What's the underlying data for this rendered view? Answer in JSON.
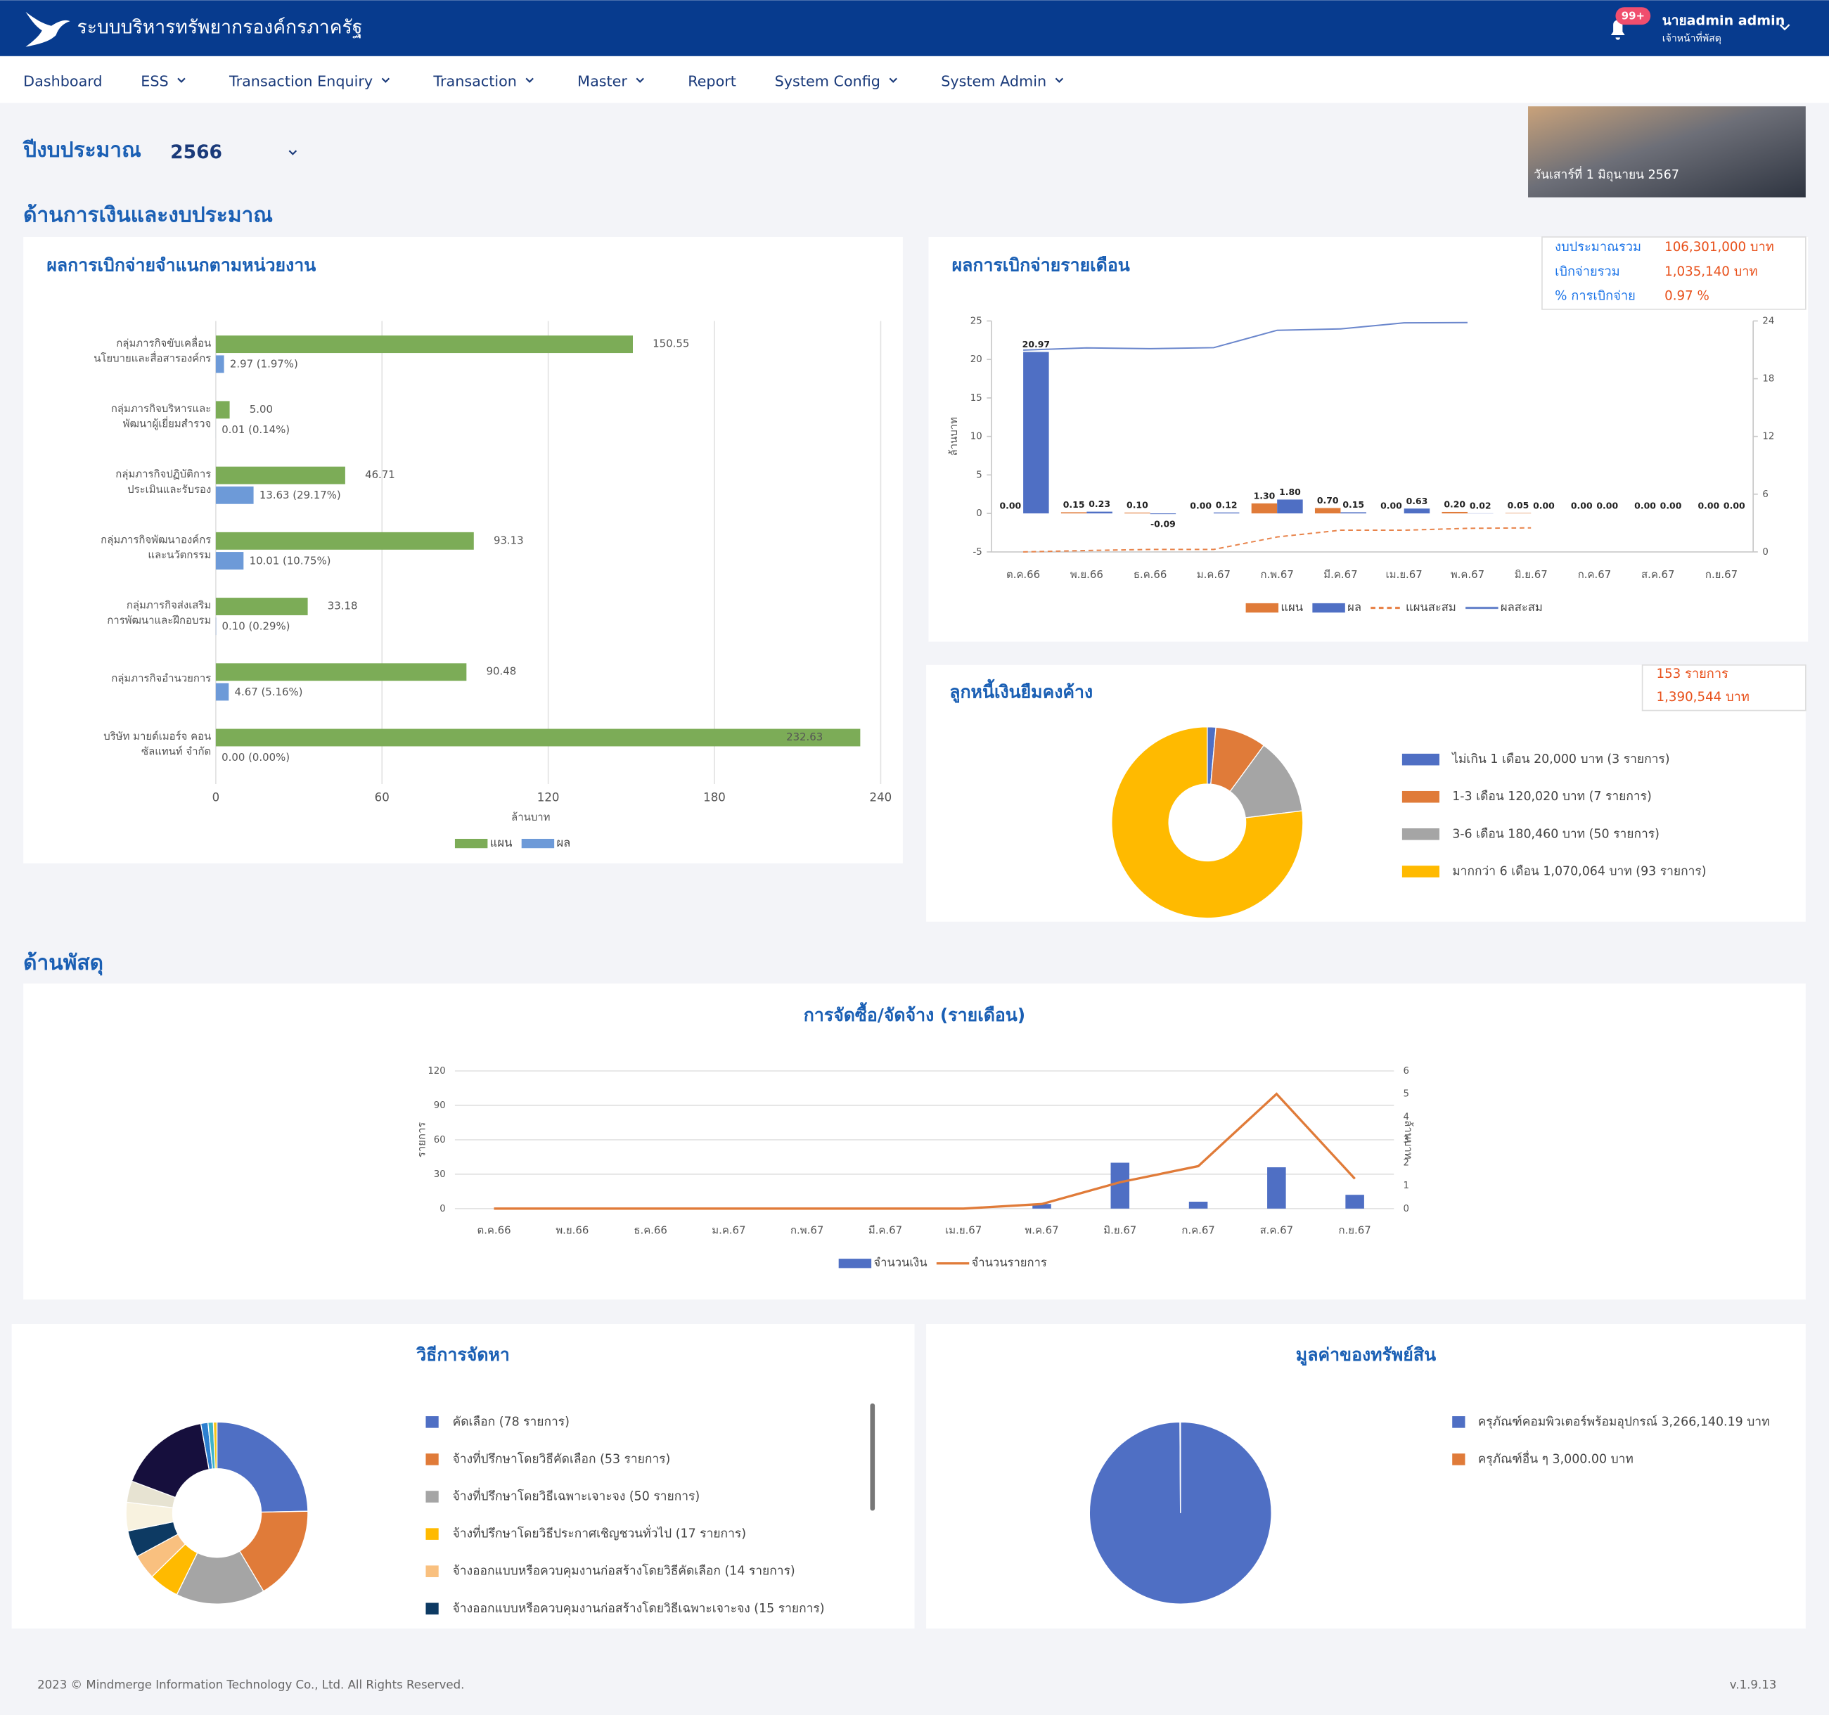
{
  "header": {
    "title": "ระบบบริหารทรัพยากรองค์กรภาครัฐ",
    "badge": "99+",
    "user_name": "นายadmin admin",
    "user_role": "เจ้าหน้าที่พัสดุ"
  },
  "nav": [
    {
      "label": "Dashboard",
      "dropdown": false
    },
    {
      "label": "ESS",
      "dropdown": true
    },
    {
      "label": "Transaction Enquiry",
      "dropdown": true
    },
    {
      "label": "Transaction",
      "dropdown": true
    },
    {
      "label": "Master",
      "dropdown": true
    },
    {
      "label": "Report",
      "dropdown": false
    },
    {
      "label": "System Config",
      "dropdown": true
    },
    {
      "label": "System Admin",
      "dropdown": true
    }
  ],
  "budget_year": {
    "label": "ปีงบประมาณ",
    "value": "2566"
  },
  "date_banner": "วันเสาร์ที่ 1 มิถุนายน 2567",
  "sections": [
    "ด้านการเงินและงบประมาณ",
    "ด้านพัสดุ"
  ],
  "budget_summary": [
    {
      "label": "งบประมาณรวม",
      "value": "106,301,000 บาท"
    },
    {
      "label": "เบิกจ่ายรวม",
      "value": "1,035,140 บาท"
    },
    {
      "label": "% การเบิกจ่าย",
      "value": "0.97 %"
    }
  ],
  "debtor_summary": [
    "153 รายการ",
    "1,390,544 บาท"
  ],
  "footer": {
    "copyright": "2023 © Mindmerge Information Technology Co., Ltd. All Rights Reserved.",
    "version": "v.1.9.13"
  },
  "chart_data": [
    {
      "type": "hbar",
      "title": "ผลการเบิกจ่ายจำแนกตามหน่วยงาน",
      "categories": [
        [
          "กลุ่มภารกิจขับเคลื่อน",
          "นโยบายและสื่อสารองค์กร"
        ],
        [
          "กลุ่มภารกิจบริหารและ",
          "พัฒนาผู้เยี่ยมสำรวจ"
        ],
        [
          "กลุ่มภารกิจปฏิบัติการ",
          "ประเมินและรับรอง"
        ],
        [
          "กลุ่มภารกิจพัฒนาองค์กร",
          "และนวัตกรรม"
        ],
        [
          "กลุ่มภารกิจส่งเสริม",
          "การพัฒนาและฝึกอบรม"
        ],
        [
          "กลุ่มภารกิจอำนวยการ"
        ],
        [
          "บริษัท มายด์เมอร์จ คอน",
          "ซัลแทนท์ จำกัด"
        ]
      ],
      "series": [
        {
          "name": "แผน",
          "color": "#7cac57",
          "values": [
            150.55,
            5.0,
            46.71,
            93.13,
            33.18,
            90.48,
            232.63
          ],
          "value_labels": [
            "150.55",
            "5.00",
            "46.71",
            "93.13",
            "33.18",
            "90.48",
            "232.63"
          ]
        },
        {
          "name": "ผล",
          "color": "#6d9ad8",
          "values": [
            2.97,
            0.01,
            13.63,
            10.01,
            0.1,
            4.67,
            0.0
          ],
          "value_labels": [
            "2.97 (1.97%)",
            "0.01 (0.14%)",
            "13.63 (29.17%)",
            "10.01 (10.75%)",
            "0.10 (0.29%)",
            "4.67 (5.16%)",
            "0.00 (0.00%)"
          ]
        }
      ],
      "xlim": [
        0,
        240
      ],
      "xticks": [
        0,
        60,
        120,
        180,
        240
      ],
      "xlabel": "ล้านบาท",
      "grid": true,
      "legend": "bottom"
    },
    {
      "type": "combo",
      "title": "ผลการเบิกจ่ายรายเดือน",
      "categories": [
        "ต.ค.66",
        "พ.ย.66",
        "ธ.ค.66",
        "ม.ค.67",
        "ก.พ.67",
        "มี.ค.67",
        "เม.ย.67",
        "พ.ค.67",
        "มิ.ย.67",
        "ก.ค.67",
        "ส.ค.67",
        "ก.ย.67"
      ],
      "series": [
        {
          "name": "แผน",
          "type": "bar",
          "color": "#e07b39",
          "values": [
            0.0,
            0.15,
            0.1,
            0.0,
            1.3,
            0.7,
            0.0,
            0.2,
            0.05,
            0.0,
            0.0,
            0.0
          ],
          "value_labels": [
            "0.00",
            "0.15",
            "0.10",
            "0.00",
            "1.30",
            "0.70",
            "0.00",
            "0.20",
            "0.05",
            "0.00",
            "0.00",
            "0.00"
          ]
        },
        {
          "name": "ผล",
          "type": "bar",
          "color": "#4f6fc4",
          "values": [
            20.97,
            0.23,
            -0.09,
            0.12,
            1.8,
            0.15,
            0.63,
            0.02,
            0.0,
            0.0,
            0.0,
            0.0
          ],
          "value_labels": [
            "20.97",
            "0.23",
            "-0.09",
            "0.12",
            "1.80",
            "0.15",
            "0.63",
            "0.02",
            "0.00",
            "0.00",
            "0.00",
            "0.00"
          ]
        },
        {
          "name": "แผนสะสม",
          "type": "line",
          "dashed": true,
          "axis": "y2",
          "color": "#e8834a",
          "values": [
            0.0,
            0.15,
            0.25,
            0.25,
            1.55,
            2.25,
            2.25,
            2.45,
            2.5,
            null,
            null,
            null
          ]
        },
        {
          "name": "ผลสะสม",
          "type": "line",
          "dashed": false,
          "axis": "y2",
          "color": "#6a86cc",
          "values": [
            20.97,
            21.2,
            21.11,
            21.23,
            23.03,
            23.18,
            23.81,
            23.83,
            null,
            null,
            null,
            null
          ]
        }
      ],
      "ylim": [
        -5,
        25
      ],
      "yticks": [
        -5,
        0,
        5,
        10,
        15,
        20,
        25
      ],
      "y2lim": [
        0,
        24
      ],
      "y2ticks": [
        0,
        6,
        12,
        18,
        24
      ],
      "ylabel": "ล้านบาท",
      "grid": false,
      "legend": "bottom"
    },
    {
      "type": "donut",
      "title": "ลูกหนี้เงินยืมคงค้าง",
      "categories": [
        "ไม่เกิน 1 เดือน 20,000 บาท (3 รายการ)",
        "1-3 เดือน 120,020 บาท (7 รายการ)",
        "3-6 เดือน 180,460 บาท (50 รายการ)",
        "มากกว่า 6 เดือน 1,070,064 บาท (93 รายการ)"
      ],
      "values": [
        20000,
        120020,
        180460,
        1070064
      ],
      "colors": [
        "#4f6fc4",
        "#e07b39",
        "#a5a5a5",
        "#ffba00"
      ],
      "legend": "right"
    },
    {
      "type": "combo",
      "title": "การจัดซื้อ/จัดจ้าง (รายเดือน)",
      "categories": [
        "ต.ค.66",
        "พ.ย.66",
        "ธ.ค.66",
        "ม.ค.67",
        "ก.พ.67",
        "มี.ค.67",
        "เม.ย.67",
        "พ.ค.67",
        "มิ.ย.67",
        "ก.ค.67",
        "ส.ค.67",
        "ก.ย.67"
      ],
      "series": [
        {
          "name": "จำนวนเงิน",
          "type": "bar",
          "axis": "y2",
          "color": "#4f6fc4",
          "values": [
            0,
            0,
            0,
            0,
            0,
            0,
            0,
            0.2,
            2.0,
            0.3,
            1.8,
            0.6
          ]
        },
        {
          "name": "จำนวนรายการ",
          "type": "line",
          "dashed": false,
          "color": "#e07b39",
          "values": [
            0,
            0,
            0,
            0,
            0,
            0,
            0,
            4,
            23,
            37,
            100,
            26
          ]
        }
      ],
      "ylim": [
        0,
        120
      ],
      "yticks": [
        0,
        30,
        60,
        90,
        120
      ],
      "y2lim": [
        0,
        6
      ],
      "y2ticks": [
        0,
        1,
        2,
        3,
        4,
        5,
        6
      ],
      "ylabel": "รายการ",
      "y2label": "ล้านบาท",
      "grid": true,
      "legend": "bottom"
    },
    {
      "type": "donut",
      "title": "วิธีการจัดหา",
      "categories": [
        "คัดเลือก (78 รายการ)",
        "จ้างที่ปรึกษาโดยวิธีคัดเลือก (53 รายการ)",
        "จ้างที่ปรึกษาโดยวิธีเฉพาะเจาะจง (50 รายการ)",
        "จ้างที่ปรึกษาโดยวิธีประกาศเชิญชวนทั่วไป (17 รายการ)",
        "จ้างออกแบบหรือควบคุมงานก่อสร้างโดยวิธีคัดเลือก (14 รายการ)",
        "จ้างออกแบบหรือควบคุมงานก่อสร้างโดยวิธีเฉพาะเจาะจง (15 รายการ)",
        null,
        null,
        null,
        null,
        null,
        null
      ],
      "values": [
        78,
        53,
        50,
        17,
        14,
        15,
        16,
        12,
        52,
        4,
        3,
        2
      ],
      "colors": [
        "#4f6fc4",
        "#e07b39",
        "#a5a5a5",
        "#ffba00",
        "#f9c07f",
        "#0d3a63",
        "#f8f2df",
        "#e7e3d2",
        "#160f3d",
        "#2c7fd0",
        "#3fb3c8",
        "#f5c518"
      ],
      "legend": "right"
    },
    {
      "type": "pie",
      "title": "มูลค่าของทรัพย์สิน",
      "categories": [
        "ครุภัณฑ์คอมพิวเตอร์พร้อมอุปกรณ์ 3,266,140.19 บาท",
        "ครุภัณฑ์อื่น ๆ 3,000.00 บาท"
      ],
      "values": [
        3266140.19,
        3000.0
      ],
      "colors": [
        "#4f6fc4",
        "#e07b39"
      ],
      "legend": "right"
    }
  ]
}
